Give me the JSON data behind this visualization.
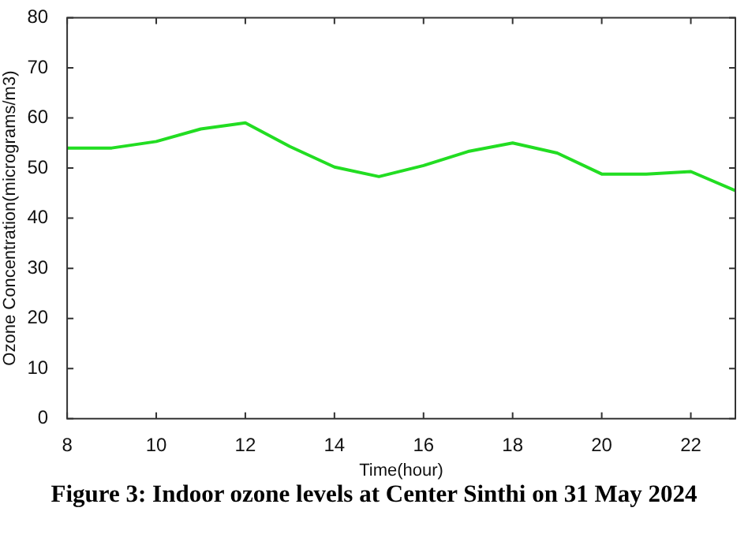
{
  "chart_data": {
    "type": "line",
    "title": "Figure 3:  Indoor ozone levels at Center Sinthi on 31 May 2024",
    "xlabel": "Time(hour)",
    "ylabel": "Ozone Concentration(micrograms/m3)",
    "x": [
      8,
      9,
      10,
      11,
      12,
      13,
      14,
      15,
      16,
      17,
      18,
      19,
      20,
      21,
      22,
      23
    ],
    "series": [
      {
        "color": "#22dd22",
        "values": [
          54,
          54,
          55.3,
          57.8,
          59,
          54.3,
          50.2,
          48.3,
          50.5,
          53.3,
          55,
          53,
          48.8,
          48.8,
          49.3,
          45.5
        ]
      }
    ],
    "xlim": [
      8,
      23
    ],
    "xticks": [
      8,
      10,
      12,
      14,
      16,
      18,
      20,
      22
    ],
    "ylim": [
      0,
      80
    ],
    "yticks": [
      0,
      10,
      20,
      30,
      40,
      50,
      60,
      70,
      80
    ]
  }
}
